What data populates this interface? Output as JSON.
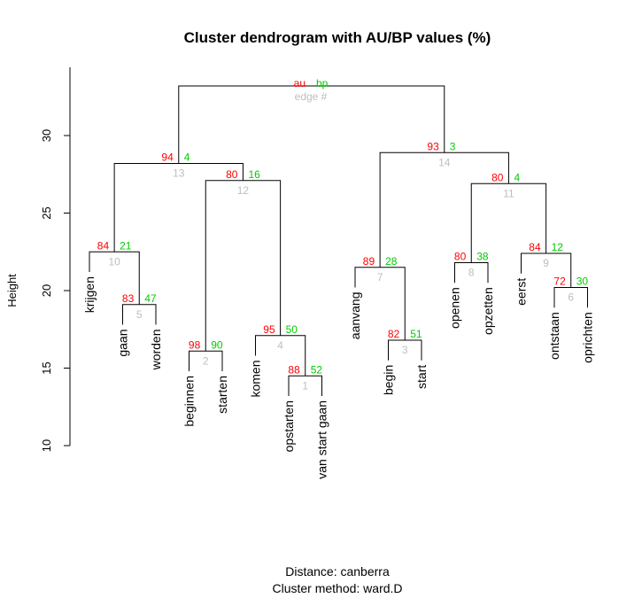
{
  "chart_data": {
    "type": "dendrogram",
    "title": "Cluster dendrogram with AU/BP values (%)",
    "ylabel": "Height",
    "ylim": [
      10,
      32
    ],
    "yticks": [
      10,
      15,
      20,
      25,
      30
    ],
    "legend": {
      "au": "au",
      "bp": "bp",
      "edge": "edge #"
    },
    "distance_label": "Distance:  canberra",
    "method_label": "Cluster method: ward.D",
    "colors": {
      "au": "#ff0000",
      "bp": "#00cc00",
      "edge": "#bebebe",
      "line": "#000000"
    },
    "leaves": [
      "krijgen",
      "gaan",
      "worden",
      "beginnen",
      "starten",
      "komen",
      "opstarten",
      "van start gaan",
      "aanvang",
      "begin",
      "start",
      "openen",
      "opzetten",
      "eerst",
      "ontstaan",
      "oprichten"
    ],
    "merges": [
      {
        "edge": 1,
        "height": 14.5,
        "au": 88,
        "bp": 52,
        "left": "opstarten",
        "right": "van start gaan"
      },
      {
        "edge": 2,
        "height": 16.1,
        "au": 98,
        "bp": 90,
        "left": "beginnen",
        "right": "starten"
      },
      {
        "edge": 3,
        "height": 16.8,
        "au": 82,
        "bp": 51,
        "left": "begin",
        "right": "start"
      },
      {
        "edge": 4,
        "height": 17.1,
        "au": 95,
        "bp": 50,
        "left": "komen",
        "right": 1
      },
      {
        "edge": 5,
        "height": 19.1,
        "au": 83,
        "bp": 47,
        "left": "gaan",
        "right": "worden"
      },
      {
        "edge": 6,
        "height": 20.2,
        "au": 72,
        "bp": 30,
        "left": "ontstaan",
        "right": "oprichten"
      },
      {
        "edge": 7,
        "height": 21.5,
        "au": 89,
        "bp": 28,
        "left": "aanvang",
        "right": 3
      },
      {
        "edge": 8,
        "height": 21.8,
        "au": 80,
        "bp": 38,
        "left": "openen",
        "right": "opzetten"
      },
      {
        "edge": 9,
        "height": 22.4,
        "au": 84,
        "bp": 12,
        "left": "eerst",
        "right": 6
      },
      {
        "edge": 10,
        "height": 22.5,
        "au": 84,
        "bp": 21,
        "left": "krijgen",
        "right": 5
      },
      {
        "edge": 11,
        "height": 26.9,
        "au": 80,
        "bp": 4,
        "left": 8,
        "right": 9
      },
      {
        "edge": 12,
        "height": 27.1,
        "au": 80,
        "bp": 16,
        "left": 2,
        "right": 4
      },
      {
        "edge": 13,
        "height": 28.2,
        "au": 94,
        "bp": 4,
        "left": 10,
        "right": 12
      },
      {
        "edge": 14,
        "height": 28.9,
        "au": 93,
        "bp": 3,
        "left": 7,
        "right": 11
      },
      {
        "edge": 15,
        "height": 33.2,
        "au": null,
        "bp": null,
        "left": 13,
        "right": 14
      }
    ]
  }
}
